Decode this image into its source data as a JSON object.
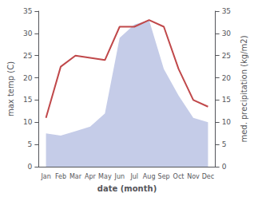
{
  "chart_data": {
    "type": "line",
    "xlabel": "date (month)",
    "ylabel": "max temp (C)",
    "y2label": "med. precipitation (kg/m2)",
    "categories": [
      "Jan",
      "Feb",
      "Mar",
      "Apr",
      "May",
      "Jun",
      "Jul",
      "Aug",
      "Sep",
      "Oct",
      "Nov",
      "Dec"
    ],
    "series": [
      {
        "type": "area",
        "color": "#c5cce8",
        "values": [
          7.5,
          7,
          8,
          9,
          12,
          29,
          32,
          33,
          22,
          16,
          11,
          10
        ]
      },
      {
        "type": "line",
        "color": "#c0484a",
        "axis": "y2",
        "values": [
          11,
          22.5,
          25,
          24.5,
          24,
          31.5,
          31.5,
          33,
          31.5,
          22,
          15,
          13.5
        ]
      }
    ],
    "ylim": [
      0,
      35
    ],
    "yticks": [
      0,
      5,
      10,
      15,
      20,
      25,
      30,
      35
    ],
    "y2lim": [
      0,
      35
    ],
    "y2ticks": [
      0,
      5,
      10,
      15,
      20,
      25,
      30,
      35
    ],
    "grid": false
  }
}
